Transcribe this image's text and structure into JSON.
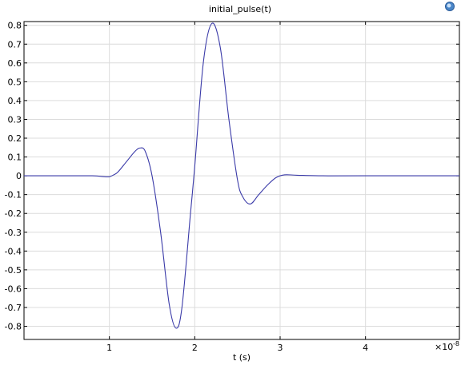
{
  "chart_data": {
    "type": "line",
    "title": "initial_pulse(t)",
    "xlabel": "t (s)",
    "ylabel": "",
    "x_scale_label": "×10",
    "x_scale_exponent": "-8",
    "xlim": [
      0,
      5.1
    ],
    "ylim": [
      -0.87,
      0.82
    ],
    "x_ticks": [
      1,
      2,
      3,
      4
    ],
    "x_tick_labels": [
      "1",
      "2",
      "3",
      "4"
    ],
    "y_ticks": [
      0.8,
      0.7,
      0.6,
      0.5,
      0.4,
      0.3,
      0.2,
      0.1,
      0,
      -0.1,
      -0.2,
      -0.3,
      -0.4,
      -0.5,
      -0.6,
      -0.7,
      -0.8
    ],
    "y_tick_labels": [
      "0.8",
      "0.7",
      "0.6",
      "0.5",
      "0.4",
      "0.3",
      "0.2",
      "0.1",
      "0",
      "-0.1",
      "-0.2",
      "-0.3",
      "-0.4",
      "-0.5",
      "-0.6",
      "-0.7",
      "-0.8"
    ],
    "grid": true,
    "line_color": "#3a3aa8",
    "series": [
      {
        "x": [
          0,
          0.5,
          0.8,
          0.95,
          1.0,
          1.05,
          1.1,
          1.2,
          1.3,
          1.36,
          1.42,
          1.5,
          1.6,
          1.7,
          1.78,
          1.85,
          1.95,
          2.0,
          2.1,
          2.2,
          2.3,
          2.4,
          2.5,
          2.56,
          2.65,
          2.75,
          2.85,
          2.95,
          3.05,
          3.2,
          3.5,
          4.0,
          5.1
        ],
        "y": [
          0,
          0,
          0,
          -0.005,
          -0.005,
          0.005,
          0.02,
          0.075,
          0.13,
          0.148,
          0.13,
          0.0,
          -0.3,
          -0.68,
          -0.81,
          -0.7,
          -0.2,
          0.05,
          0.6,
          0.81,
          0.68,
          0.3,
          -0.02,
          -0.11,
          -0.15,
          -0.1,
          -0.05,
          -0.01,
          0.005,
          0.003,
          0,
          0,
          0
        ]
      }
    ]
  },
  "icons": {
    "corner_icon": "comsol-logo-icon"
  }
}
